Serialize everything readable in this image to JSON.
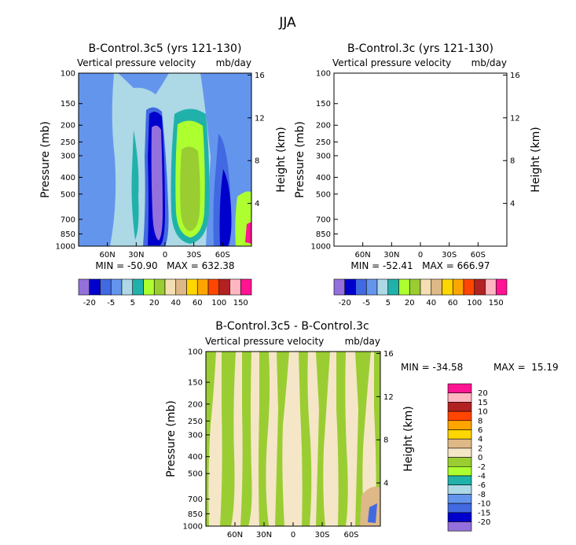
{
  "figure_title": "JJA",
  "chart_data": [
    {
      "type": "heatmap",
      "title": "B-Control.3c5 (yrs 121-130)",
      "subtitle_left": "Vertical pressure velocity",
      "subtitle_right": "mb/day",
      "ylabel": "Pressure (mb)",
      "y2label": "Height (km)",
      "y_ticks": [
        "100",
        "150",
        "200",
        "250",
        "300",
        "400",
        "500",
        "700",
        "850",
        "1000"
      ],
      "y_tick_values": [
        100,
        150,
        200,
        250,
        300,
        400,
        500,
        700,
        850,
        1000
      ],
      "y2_ticks": [
        "16",
        "12",
        "8",
        "4"
      ],
      "y2_tick_values": [
        16,
        12,
        8,
        4
      ],
      "x_ticks": [
        "60N",
        "30N",
        "0",
        "30S",
        "60S"
      ],
      "x_tick_values": [
        60,
        30,
        0,
        -30,
        -60
      ],
      "xlim": [
        90,
        -90
      ],
      "ylim": [
        1000,
        100
      ],
      "stats": "MIN = -50.90   MAX = 632.38",
      "colorbar_labels": [
        "-20",
        "-5",
        "5",
        "20",
        "40",
        "60",
        "100",
        "150"
      ],
      "colorbar_colors": [
        "#9370db",
        "#0000cd",
        "#4169e1",
        "#6495ed",
        "#add8e6",
        "#20b2aa",
        "#adff2f",
        "#9acd32",
        "#f5deb3",
        "#deb887",
        "#ffd700",
        "#ffa500",
        "#ff4500",
        "#b22222",
        "#ffb6c1",
        "#ff1493"
      ]
    },
    {
      "type": "heatmap",
      "title": "B-Control.3c (yrs 121-130)",
      "subtitle_left": "Vertical pressure velocity",
      "subtitle_right": "mb/day",
      "ylabel": "Pressure (mb)",
      "y2label": "Height (km)",
      "y_ticks": [
        "100",
        "150",
        "200",
        "250",
        "300",
        "400",
        "500",
        "700",
        "850",
        "1000"
      ],
      "y_tick_values": [
        100,
        150,
        200,
        250,
        300,
        400,
        500,
        700,
        850,
        1000
      ],
      "y2_ticks": [
        "16",
        "12",
        "8",
        "4"
      ],
      "y2_tick_values": [
        16,
        12,
        8,
        4
      ],
      "x_ticks": [
        "60N",
        "30N",
        "0",
        "30S",
        "60S"
      ],
      "x_tick_values": [
        60,
        30,
        0,
        -30,
        -60
      ],
      "xlim": [
        90,
        -90
      ],
      "ylim": [
        1000,
        100
      ],
      "stats": "MIN = -52.41   MAX = 666.97",
      "colorbar_labels": [
        "-20",
        "-5",
        "5",
        "20",
        "40",
        "60",
        "100",
        "150"
      ],
      "colorbar_colors": [
        "#9370db",
        "#0000cd",
        "#4169e1",
        "#6495ed",
        "#add8e6",
        "#20b2aa",
        "#adff2f",
        "#9acd32",
        "#f5deb3",
        "#deb887",
        "#ffd700",
        "#ffa500",
        "#ff4500",
        "#b22222",
        "#ffb6c1",
        "#ff1493"
      ]
    },
    {
      "type": "heatmap",
      "title": "B-Control.3c5 - B-Control.3c",
      "subtitle_left": "Vertical pressure velocity",
      "subtitle_right": "mb/day",
      "ylabel": "Pressure (mb)",
      "y2label": "Height (km)",
      "y_ticks": [
        "100",
        "150",
        "200",
        "250",
        "300",
        "400",
        "500",
        "700",
        "850",
        "1000"
      ],
      "y_tick_values": [
        100,
        150,
        200,
        250,
        300,
        400,
        500,
        700,
        850,
        1000
      ],
      "y2_ticks": [
        "16",
        "12",
        "8",
        "4"
      ],
      "y2_tick_values": [
        16,
        12,
        8,
        4
      ],
      "x_ticks": [
        "60N",
        "30N",
        "0",
        "30S",
        "60S"
      ],
      "x_tick_values": [
        60,
        30,
        0,
        -30,
        -60
      ],
      "xlim": [
        90,
        -90
      ],
      "ylim": [
        1000,
        100
      ],
      "stats_min": "MIN = -34.58",
      "stats_max": "MAX =  15.19",
      "colorbar_labels": [
        "20",
        "15",
        "10",
        "8",
        "6",
        "4",
        "2",
        "0",
        "-2",
        "-4",
        "-6",
        "-8",
        "-10",
        "-15",
        "-20"
      ],
      "colorbar_colors": [
        "#ff1493",
        "#ffb6c1",
        "#b22222",
        "#ff4500",
        "#ffa500",
        "#ffd700",
        "#deb887",
        "#f5e6c8",
        "#9acd32",
        "#adff2f",
        "#20b2aa",
        "#add8e6",
        "#6495ed",
        "#4169e1",
        "#0000cd",
        "#9370db"
      ]
    }
  ]
}
